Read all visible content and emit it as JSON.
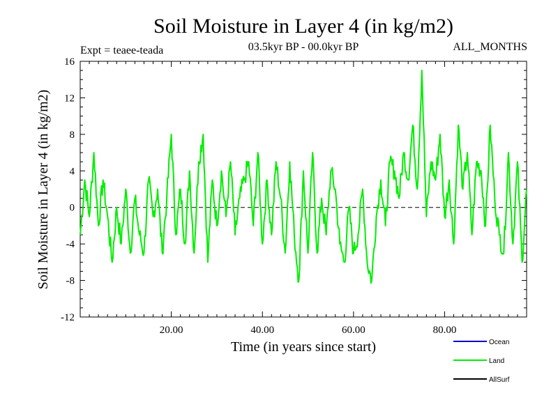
{
  "chart_data": {
    "type": "line",
    "title": "Soil Moisture in Layer 4 (in kg/m2)",
    "subtitle": "03.5kyr BP - 00.0kyr BP",
    "experiment": "Expt = teaee-teada",
    "season": "ALL_MONTHS",
    "xlabel": "Time (in years since start)",
    "ylabel": "Soil Moisture in Layer 4 (in kg/m2)",
    "xlim": [
      0,
      98
    ],
    "ylim": [
      -12,
      16
    ],
    "yticks": [
      -12,
      -8,
      -4,
      0,
      4,
      8,
      12,
      16
    ],
    "ytick_labels": [
      "-12",
      "-8",
      "-4",
      "0",
      "4",
      "8",
      "12",
      "16"
    ],
    "xticks": [
      20,
      40,
      60,
      80
    ],
    "xtick_labels": [
      "20.00",
      "40.00",
      "60.00",
      "80.00"
    ],
    "zero_line": true,
    "series": [
      {
        "name": "Ocean",
        "color": "#0000cc",
        "values": []
      },
      {
        "name": "Land",
        "color": "#00ee00",
        "x": [
          0,
          1,
          2,
          3,
          4,
          5,
          6,
          7,
          8,
          9,
          10,
          11,
          12,
          13,
          14,
          15,
          16,
          17,
          18,
          19,
          20,
          21,
          22,
          23,
          24,
          25,
          26,
          27,
          28,
          29,
          30,
          31,
          32,
          33,
          34,
          35,
          36,
          37,
          38,
          39,
          40,
          41,
          42,
          43,
          44,
          45,
          46,
          47,
          48,
          49,
          50,
          51,
          52,
          53,
          54,
          55,
          56,
          57,
          58,
          59,
          60,
          61,
          62,
          63,
          64,
          65,
          66,
          67,
          68,
          69,
          70,
          71,
          72,
          73,
          74,
          75,
          76,
          77,
          78,
          79,
          80,
          81,
          82,
          83,
          84,
          85,
          86,
          87,
          88,
          89,
          90,
          91,
          92,
          93,
          94,
          95,
          96,
          97,
          98
        ],
        "values": [
          -3,
          3,
          -1,
          6,
          -2,
          3,
          -1,
          -6,
          0,
          -4,
          2,
          -5,
          1,
          -3,
          -5,
          3,
          -1,
          2,
          -5,
          1,
          8,
          -3,
          2,
          -4,
          4,
          -5,
          5,
          8,
          -6,
          3,
          -2,
          4,
          -1,
          5,
          -3,
          1,
          3,
          5,
          -2,
          6,
          -4,
          3,
          -3,
          5,
          1,
          -5,
          5,
          -3,
          -8,
          4,
          -5,
          6,
          -5,
          1,
          -3,
          4,
          2,
          -4,
          -6,
          0,
          -5,
          -3,
          2,
          -6,
          -8,
          -1,
          3,
          -2,
          5,
          4,
          1,
          6,
          3,
          9,
          2,
          15,
          -1,
          5,
          3,
          8,
          -1,
          3,
          -4,
          9,
          2,
          6,
          -3,
          5,
          4,
          -2,
          9,
          1,
          -3,
          -5,
          6,
          -4,
          5,
          -6,
          2
        ],
        "description_range": "oscillates roughly between -8 and 15, peak near x=75"
      },
      {
        "name": "AllSurf",
        "color": "#000000",
        "values": []
      }
    ],
    "legend": [
      {
        "label": "Ocean",
        "color": "#0000cc"
      },
      {
        "label": "Land",
        "color": "#00ee00"
      },
      {
        "label": "AllSurf",
        "color": "#000000"
      }
    ],
    "legend_position": "bottom-right"
  }
}
